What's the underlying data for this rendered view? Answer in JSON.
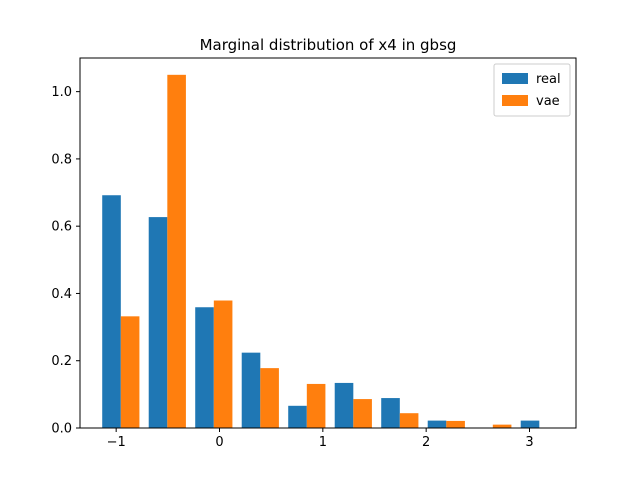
{
  "chart_data": {
    "type": "bar",
    "title": "Marginal distribution of x4 in gbsg",
    "xlabel": "",
    "ylabel": "",
    "xlim": [
      -1.35,
      3.45
    ],
    "ylim": [
      0,
      1.1
    ],
    "xticks": [
      -1,
      0,
      1,
      2,
      3
    ],
    "xtick_labels": [
      "−1",
      "0",
      "1",
      "2",
      "3"
    ],
    "yticks": [
      0,
      0.2,
      0.4,
      0.6,
      0.8,
      1.0
    ],
    "ytick_labels": [
      "0.0",
      "0.2",
      "0.4",
      "0.6",
      "0.8",
      "1.0"
    ],
    "grid": false,
    "legend_position": "top-right",
    "bin_edges": [
      -1.18,
      -0.73,
      -0.28,
      0.17,
      0.62,
      1.07,
      1.52,
      1.97,
      2.42,
      2.87,
      3.32
    ],
    "series": [
      {
        "name": "real",
        "color": "#1f77b4",
        "values": [
          0.692,
          0.627,
          0.359,
          0.224,
          0.066,
          0.134,
          0.089,
          0.022,
          0.0,
          0.022
        ]
      },
      {
        "name": "vae",
        "color": "#ff7f0e",
        "values": [
          0.332,
          1.05,
          0.379,
          0.178,
          0.131,
          0.086,
          0.044,
          0.021,
          0.01,
          0.0
        ]
      }
    ]
  }
}
